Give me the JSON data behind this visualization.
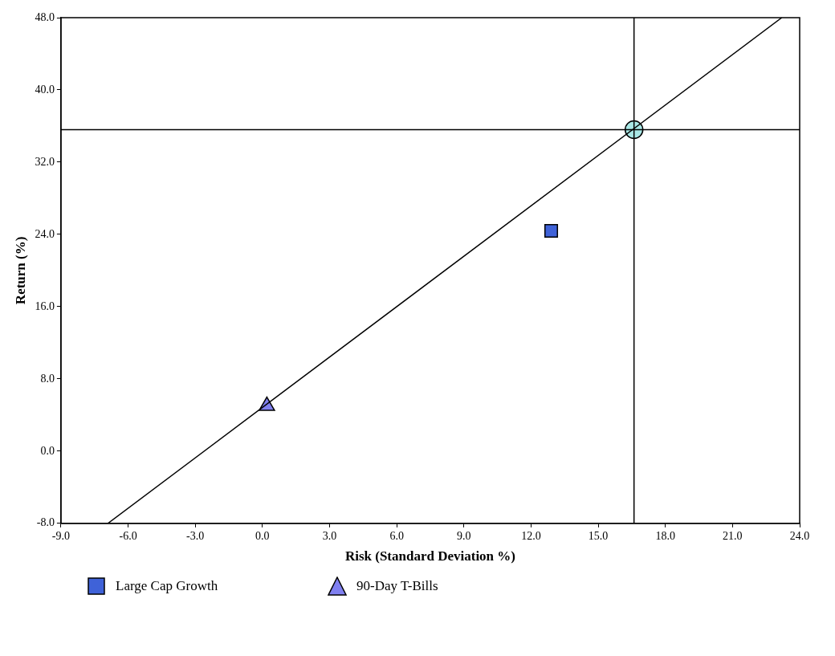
{
  "chart_data": {
    "type": "scatter",
    "xlabel": "Risk (Standard Deviation %)",
    "ylabel": "Return (%)",
    "xlim": [
      -9,
      24
    ],
    "xticks": [
      {
        "value": -9,
        "label": "-9.0"
      },
      {
        "value": -6,
        "label": "-6.0"
      },
      {
        "value": -3,
        "label": "-3.0"
      },
      {
        "value": 0,
        "label": "0.0"
      },
      {
        "value": 3,
        "label": "3.0"
      },
      {
        "value": 6,
        "label": "6.0"
      },
      {
        "value": 9,
        "label": "9.0"
      },
      {
        "value": 12,
        "label": "12.0"
      },
      {
        "value": 15,
        "label": "15.0"
      },
      {
        "value": 18,
        "label": "18.0"
      },
      {
        "value": 21,
        "label": "21.0"
      },
      {
        "value": 24,
        "label": "24.0"
      }
    ],
    "ylim": [
      -8,
      48
    ],
    "yticks": [
      {
        "value": -8,
        "label": "-8.0"
      },
      {
        "value": 0,
        "label": "0.0"
      },
      {
        "value": 8,
        "label": "8.0"
      },
      {
        "value": 16,
        "label": "16.0"
      },
      {
        "value": 24,
        "label": "24.0"
      },
      {
        "value": 32,
        "label": "32.0"
      },
      {
        "value": 40,
        "label": "40.0"
      },
      {
        "value": 48,
        "label": "48.0"
      }
    ],
    "grid": false,
    "legend": "bottom",
    "series": [
      {
        "type": "line",
        "color": "#000000",
        "x": [
          -6.9,
          23.2
        ],
        "values": [
          -8,
          48
        ],
        "marker": "none"
      },
      {
        "name": "Large Cap Growth",
        "color": "#3f62d8",
        "x": [
          12.9
        ],
        "values": [
          24.4
        ],
        "marker": "square"
      },
      {
        "color": "#a9e8e6",
        "x": [
          16.6
        ],
        "values": [
          35.6
        ],
        "marker": "circle"
      },
      {
        "name": "90-Day T-Bills",
        "color": "#8080f0",
        "x": [
          0.2
        ],
        "values": [
          5.0
        ],
        "marker": "triangle"
      }
    ],
    "ref_lines": [
      {
        "axis": "x",
        "value": 16.6
      },
      {
        "axis": "y",
        "value": 35.6
      }
    ]
  }
}
